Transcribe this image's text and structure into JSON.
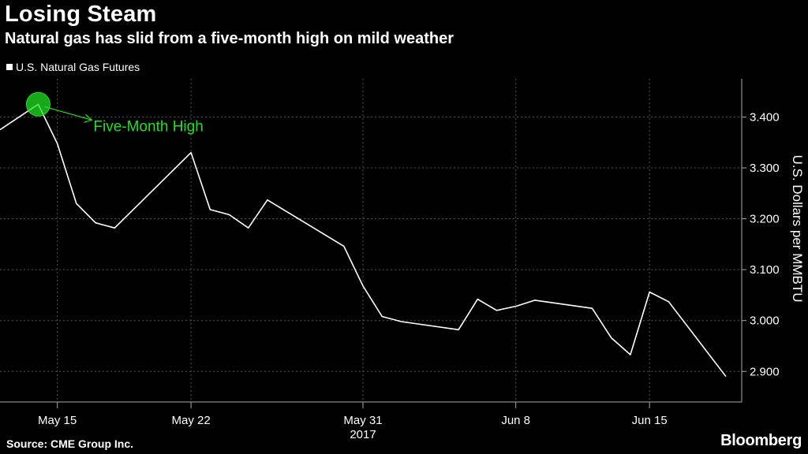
{
  "header": {
    "title": "Losing Steam",
    "subtitle": "Natural gas has slid from a five-month high on mild weather"
  },
  "legend": {
    "label": "U.S. Natural Gas Futures"
  },
  "footer": {
    "source": "Source: CME Group Inc.",
    "brand": "Bloomberg"
  },
  "colors": {
    "background": "#000000",
    "line": "#ffffff",
    "annotation": "#22e022",
    "grid": "#555555"
  },
  "chart_data": {
    "type": "line",
    "ylabel": "U.S. Dollars per MMBTU",
    "ylim": [
      2.84,
      3.475
    ],
    "y_axis_position": "right",
    "grid": true,
    "yticks": [
      2.9,
      3.0,
      3.1,
      3.2,
      3.3,
      3.4
    ],
    "ytick_labels": [
      "2.900",
      "3.000",
      "3.100",
      "3.200",
      "3.300",
      "3.400"
    ],
    "xticks": [
      {
        "date": "2017-05-15",
        "label": "May 15",
        "sublabel": ""
      },
      {
        "date": "2017-05-22",
        "label": "May 22",
        "sublabel": ""
      },
      {
        "date": "2017-05-31",
        "label": "May 31",
        "sublabel": "2017"
      },
      {
        "date": "2017-06-08",
        "label": "Jun 8",
        "sublabel": ""
      },
      {
        "date": "2017-06-15",
        "label": "Jun 15",
        "sublabel": ""
      }
    ],
    "x_range": [
      "2017-05-12",
      "2017-06-19"
    ],
    "series": [
      {
        "name": "U.S. Natural Gas Futures",
        "points": [
          {
            "x": "2017-05-12",
            "y": 3.375
          },
          {
            "x": "2017-05-14",
            "y": 3.425
          },
          {
            "x": "2017-05-15",
            "y": 3.348
          },
          {
            "x": "2017-05-16",
            "y": 3.23
          },
          {
            "x": "2017-05-17",
            "y": 3.192
          },
          {
            "x": "2017-05-18",
            "y": 3.182
          },
          {
            "x": "2017-05-22",
            "y": 3.33
          },
          {
            "x": "2017-05-23",
            "y": 3.218
          },
          {
            "x": "2017-05-24",
            "y": 3.208
          },
          {
            "x": "2017-05-25",
            "y": 3.182
          },
          {
            "x": "2017-05-26",
            "y": 3.237
          },
          {
            "x": "2017-05-30",
            "y": 3.146
          },
          {
            "x": "2017-05-31",
            "y": 3.068
          },
          {
            "x": "2017-06-01",
            "y": 3.008
          },
          {
            "x": "2017-06-02",
            "y": 2.998
          },
          {
            "x": "2017-06-05",
            "y": 2.982
          },
          {
            "x": "2017-06-06",
            "y": 3.042
          },
          {
            "x": "2017-06-07",
            "y": 3.02
          },
          {
            "x": "2017-06-08",
            "y": 3.028
          },
          {
            "x": "2017-06-09",
            "y": 3.04
          },
          {
            "x": "2017-06-12",
            "y": 3.024
          },
          {
            "x": "2017-06-13",
            "y": 2.966
          },
          {
            "x": "2017-06-14",
            "y": 2.933
          },
          {
            "x": "2017-06-15",
            "y": 3.056
          },
          {
            "x": "2017-06-16",
            "y": 3.037
          },
          {
            "x": "2017-06-19",
            "y": 2.89
          }
        ]
      }
    ],
    "annotations": [
      {
        "text": "Five-Month High",
        "x": "2017-05-14",
        "y": 3.425
      }
    ]
  }
}
